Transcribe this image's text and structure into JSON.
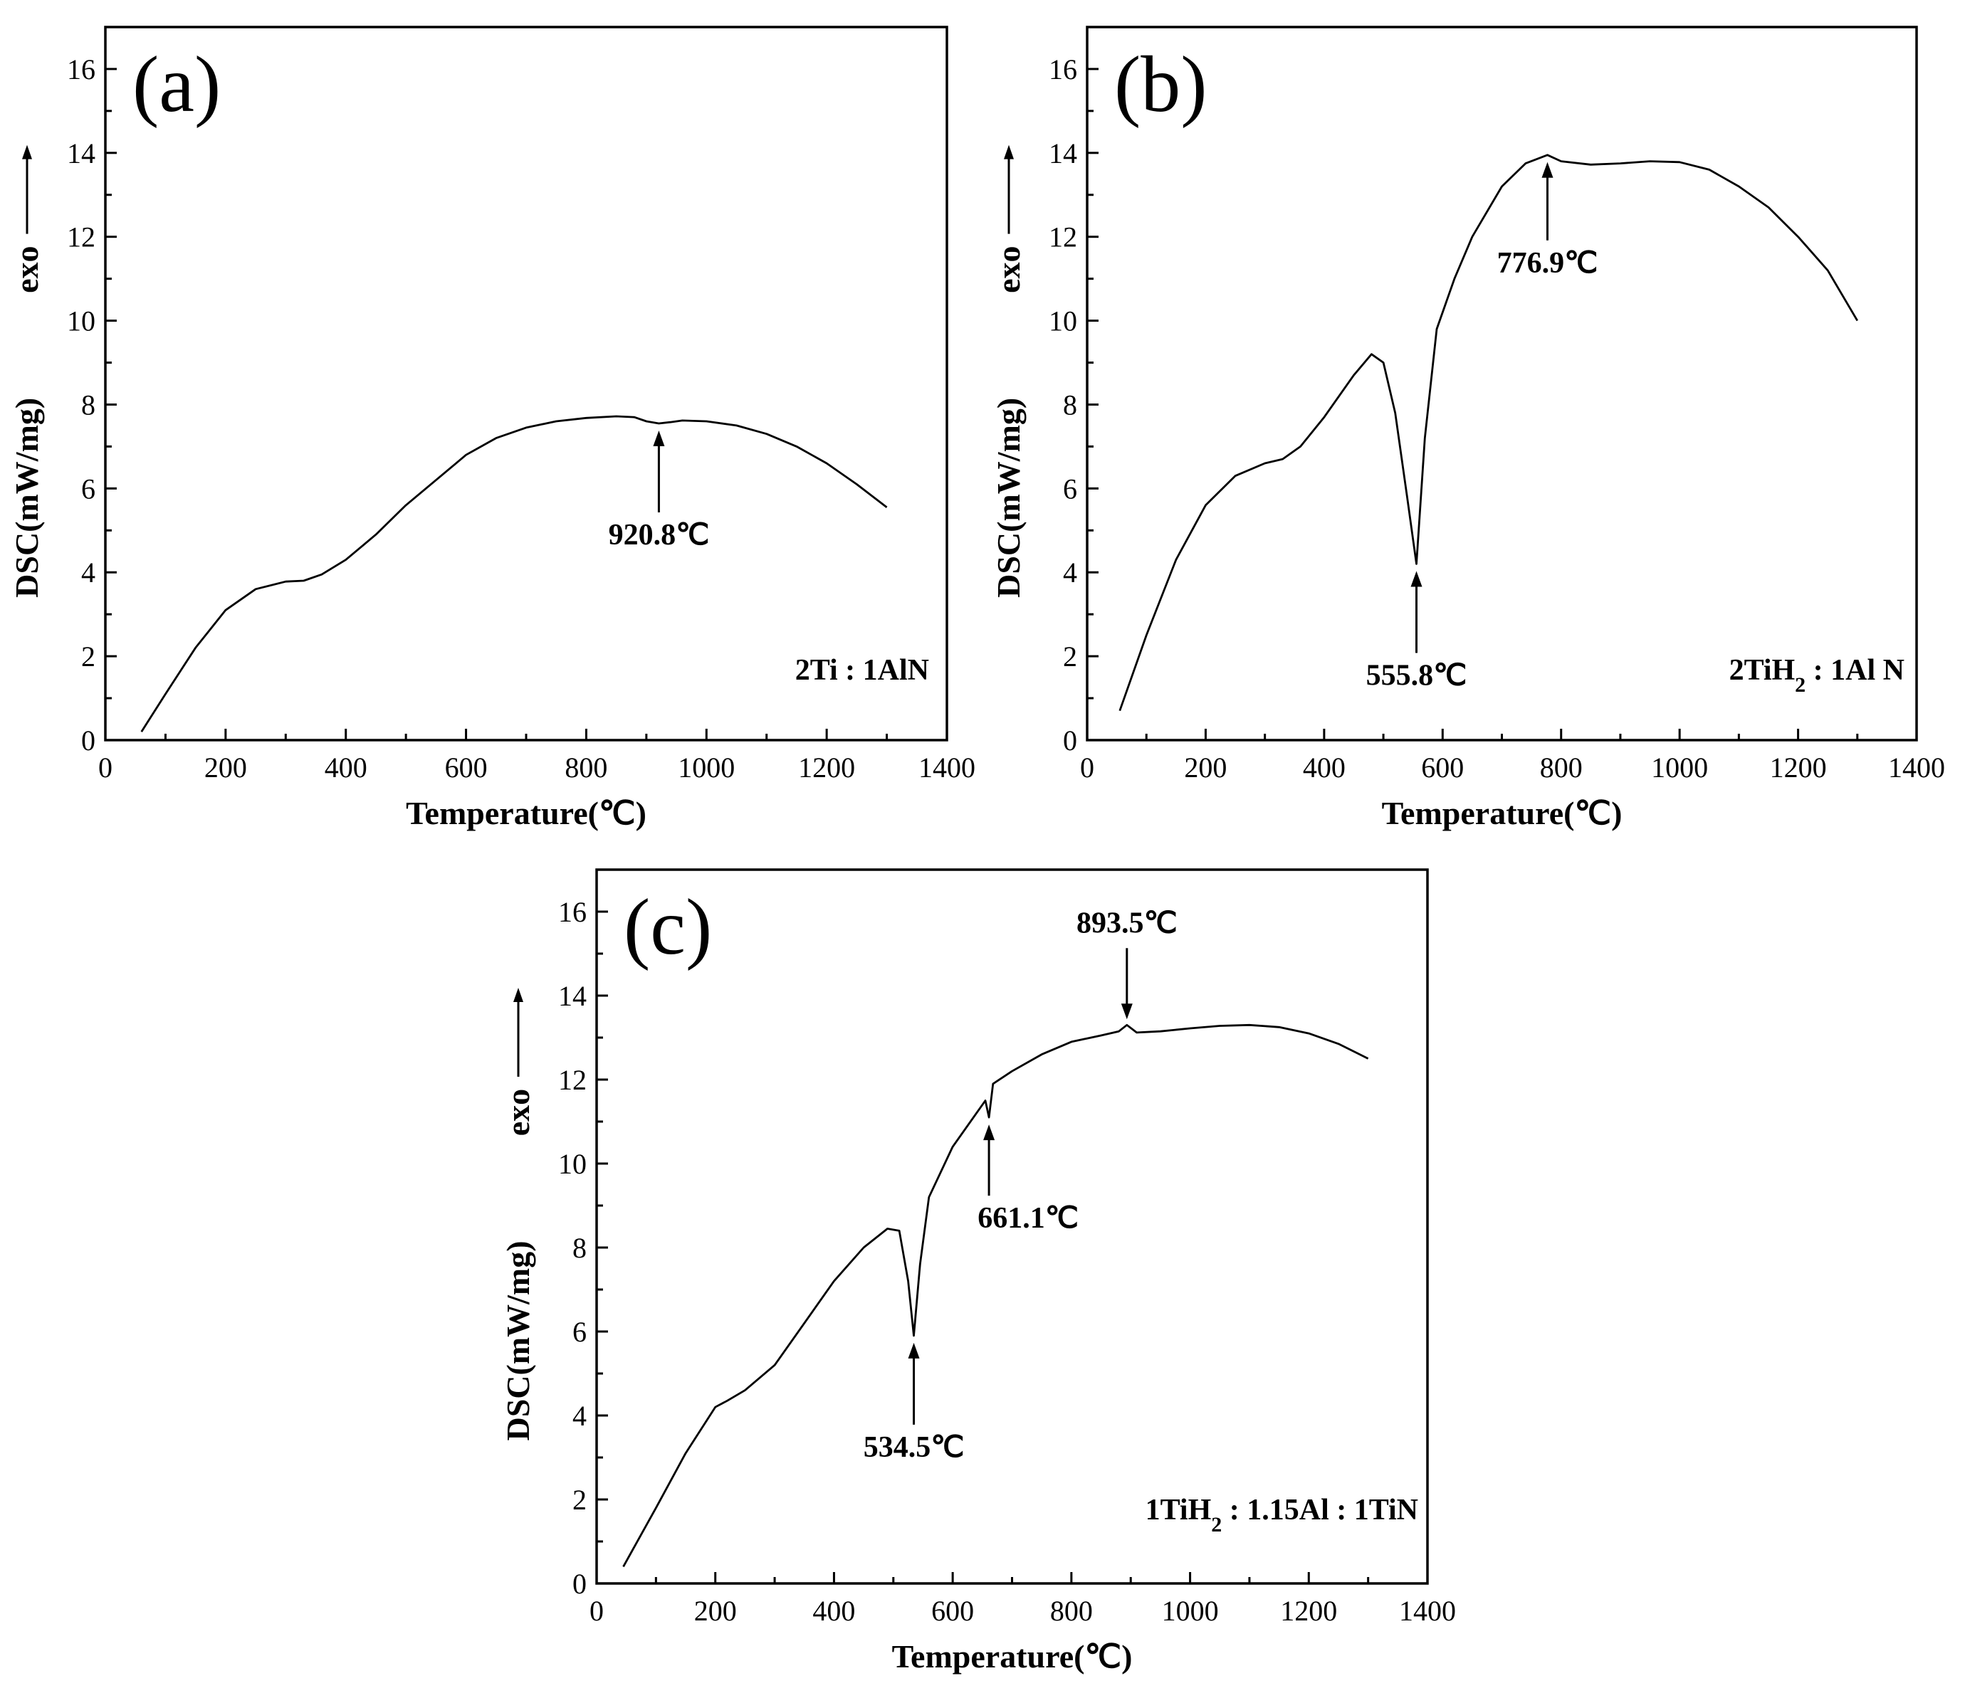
{
  "chart_data": [
    {
      "type": "line",
      "panel_label": "(a)",
      "title": "",
      "xlabel": "Temperature(℃)",
      "ylabel": "DSC(mW/mg)",
      "exo_label": "exo",
      "xlim": [
        0,
        1400
      ],
      "ylim": [
        0,
        17
      ],
      "xticks": [
        0,
        200,
        400,
        600,
        800,
        1000,
        1200,
        1400
      ],
      "yticks": [
        0,
        2,
        4,
        6,
        8,
        10,
        12,
        14,
        16
      ],
      "grid": false,
      "sample_label": "2Ti : 1AlN",
      "series": [
        {
          "name": "2Ti : 1AlN",
          "x": [
            60,
            100,
            150,
            200,
            250,
            300,
            330,
            360,
            400,
            450,
            500,
            550,
            600,
            650,
            700,
            750,
            800,
            850,
            880,
            900,
            920.8,
            940,
            960,
            1000,
            1050,
            1100,
            1150,
            1200,
            1250,
            1300
          ],
          "y": [
            0.2,
            1.1,
            2.2,
            3.1,
            3.6,
            3.78,
            3.8,
            3.95,
            4.3,
            4.9,
            5.6,
            6.2,
            6.8,
            7.2,
            7.45,
            7.6,
            7.68,
            7.72,
            7.7,
            7.6,
            7.55,
            7.58,
            7.62,
            7.6,
            7.5,
            7.3,
            7.0,
            6.6,
            6.1,
            5.55
          ]
        }
      ],
      "annotations": [
        {
          "text": "920.8℃",
          "x": 920.8,
          "y": 7.55,
          "arrow": "up"
        }
      ]
    },
    {
      "type": "line",
      "panel_label": "(b)",
      "title": "",
      "xlabel": "Temperature(℃)",
      "ylabel": "DSC(mW/mg)",
      "exo_label": "exo",
      "xlim": [
        0,
        1400
      ],
      "ylim": [
        0,
        17
      ],
      "xticks": [
        0,
        200,
        400,
        600,
        800,
        1000,
        1200,
        1400
      ],
      "yticks": [
        0,
        2,
        4,
        6,
        8,
        10,
        12,
        14,
        16
      ],
      "grid": false,
      "sample_sub_label": "2TiH",
      "sample_subscript": "2",
      "sample_sub_suffix": " : 1Al N",
      "series": [
        {
          "name": "2TiH2 : 1Al N",
          "x": [
            55,
            100,
            150,
            200,
            250,
            300,
            330,
            360,
            400,
            450,
            480,
            500,
            520,
            540,
            555.8,
            570,
            590,
            620,
            650,
            700,
            740,
            776.9,
            800,
            850,
            900,
            950,
            1000,
            1050,
            1100,
            1150,
            1200,
            1250,
            1300
          ],
          "y": [
            0.7,
            2.5,
            4.3,
            5.6,
            6.3,
            6.6,
            6.7,
            7.0,
            7.7,
            8.7,
            9.2,
            9.0,
            7.8,
            5.8,
            4.2,
            7.2,
            9.8,
            11.0,
            12.0,
            13.2,
            13.75,
            13.95,
            13.8,
            13.72,
            13.75,
            13.8,
            13.78,
            13.6,
            13.2,
            12.7,
            12.0,
            11.2,
            10.0
          ]
        }
      ],
      "annotations": [
        {
          "text": "555.8℃",
          "x": 555.8,
          "y": 4.2,
          "arrow": "up"
        },
        {
          "text": "776.9℃",
          "x": 776.9,
          "y": 13.95,
          "arrow": "up"
        }
      ]
    },
    {
      "type": "line",
      "panel_label": "(c)",
      "title": "",
      "xlabel": "Temperature(℃)",
      "ylabel": "DSC(mW/mg)",
      "exo_label": "exo",
      "xlim": [
        0,
        1400
      ],
      "ylim": [
        0,
        17
      ],
      "xticks": [
        0,
        200,
        400,
        600,
        800,
        1000,
        1200,
        1400
      ],
      "yticks": [
        0,
        2,
        4,
        6,
        8,
        10,
        12,
        14,
        16
      ],
      "grid": false,
      "sample_sub_label": "1TiH",
      "sample_subscript": "2",
      "sample_sub_suffix": " : 1.15Al : 1TiN",
      "series": [
        {
          "name": "1TiH2 : 1.15Al : 1TiN",
          "x": [
            45,
            100,
            150,
            200,
            220,
            250,
            300,
            350,
            400,
            450,
            490,
            510,
            525,
            534.5,
            545,
            560,
            600,
            640,
            655,
            661.1,
            668,
            700,
            750,
            800,
            850,
            880,
            893.5,
            910,
            950,
            1000,
            1050,
            1100,
            1150,
            1200,
            1250,
            1300
          ],
          "y": [
            0.4,
            1.8,
            3.1,
            4.2,
            4.35,
            4.6,
            5.2,
            6.2,
            7.2,
            8.0,
            8.45,
            8.4,
            7.2,
            5.9,
            7.6,
            9.2,
            10.4,
            11.2,
            11.5,
            11.1,
            11.9,
            12.2,
            12.6,
            12.9,
            13.05,
            13.15,
            13.3,
            13.12,
            13.15,
            13.22,
            13.28,
            13.3,
            13.25,
            13.1,
            12.85,
            12.5
          ]
        }
      ],
      "annotations": [
        {
          "text": "534.5℃",
          "x": 534.5,
          "y": 5.9,
          "arrow": "up"
        },
        {
          "text": "661.1℃",
          "x": 661.1,
          "y": 11.1,
          "arrow": "up"
        },
        {
          "text": "893.5℃",
          "x": 893.5,
          "y": 13.3,
          "arrow": "down"
        }
      ]
    }
  ]
}
